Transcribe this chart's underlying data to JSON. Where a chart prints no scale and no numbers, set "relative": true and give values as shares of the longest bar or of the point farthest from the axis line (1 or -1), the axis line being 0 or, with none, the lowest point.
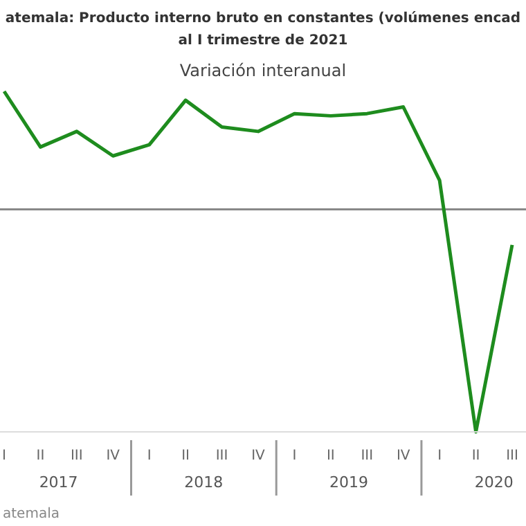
{
  "chart_data": {
    "type": "line",
    "title": "atemala: Producto interno bruto en constantes (volúmenes encad al I trimestre de 2021",
    "subtitle": "Variación interanual",
    "relative": true,
    "categories": [
      "I",
      "II",
      "III",
      "IV",
      "I",
      "II",
      "III",
      "IV",
      "I",
      "II",
      "III",
      "IV",
      "I",
      "II",
      "III"
    ],
    "series": [
      {
        "color": "#1e8c1e",
        "values": [
          0.53,
          0.28,
          0.35,
          0.24,
          0.29,
          0.49,
          0.37,
          0.35,
          0.43,
          0.42,
          0.43,
          0.46,
          0.13,
          -1,
          -0.16
        ]
      }
    ],
    "annotations": [
      "2017",
      "2018",
      "2019",
      "2020",
      "atemala"
    ],
    "marker": "none",
    "line_style": "solid"
  }
}
